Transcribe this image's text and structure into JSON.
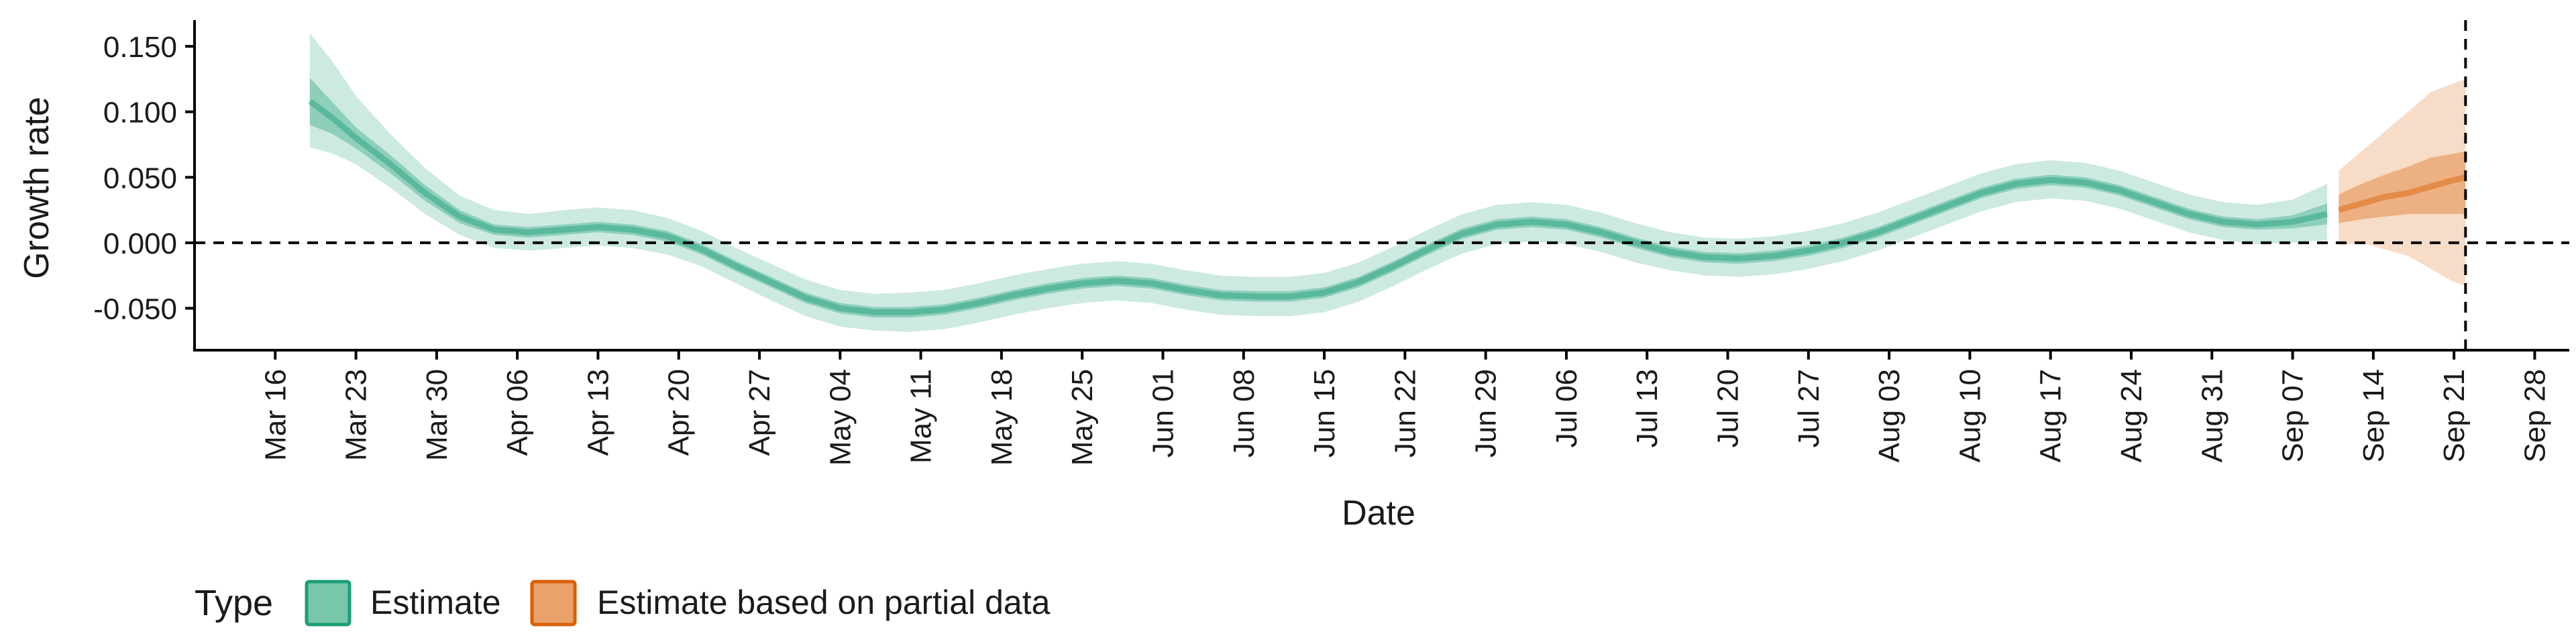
{
  "chart_data": {
    "type": "area",
    "xlabel": "Date",
    "ylabel": "Growth rate",
    "xlim": [
      "2020-03-09",
      "2020-10-01"
    ],
    "ylim": [
      -0.082,
      0.17
    ],
    "y_ticks": [
      0.15,
      0.1,
      0.05,
      0.0,
      -0.05
    ],
    "y_tick_labels": [
      "0.150",
      "0.100",
      "0.050",
      "0.000",
      "-0.050"
    ],
    "x_ticks": [
      "2020-03-16",
      "2020-03-23",
      "2020-03-30",
      "2020-04-06",
      "2020-04-13",
      "2020-04-20",
      "2020-04-27",
      "2020-05-04",
      "2020-05-11",
      "2020-05-18",
      "2020-05-25",
      "2020-06-01",
      "2020-06-08",
      "2020-06-15",
      "2020-06-22",
      "2020-06-29",
      "2020-07-06",
      "2020-07-13",
      "2020-07-20",
      "2020-07-27",
      "2020-08-03",
      "2020-08-10",
      "2020-08-17",
      "2020-08-24",
      "2020-08-31",
      "2020-09-07",
      "2020-09-14",
      "2020-09-21",
      "2020-09-28"
    ],
    "x_tick_labels": [
      "Mar 16",
      "Mar 23",
      "Mar 30",
      "Apr 06",
      "Apr 13",
      "Apr 20",
      "Apr 27",
      "May 04",
      "May 11",
      "May 18",
      "May 25",
      "Jun 01",
      "Jun 08",
      "Jun 15",
      "Jun 22",
      "Jun 29",
      "Jul 06",
      "Jul 13",
      "Jul 20",
      "Jul 27",
      "Aug 03",
      "Aug 10",
      "Aug 17",
      "Aug 24",
      "Aug 31",
      "Sep 07",
      "Sep 14",
      "Sep 21",
      "Sep 28"
    ],
    "hline_y": 0,
    "vline_x": "2020-09-22",
    "grid": false,
    "legend": {
      "title": "Type",
      "position": "bottom-left",
      "entries": [
        {
          "label": "Estimate",
          "fill": "#79c7a9",
          "stroke": "#1b9e77"
        },
        {
          "label": "Estimate based on partial data",
          "fill": "#eaa16a",
          "stroke": "#d95f02"
        }
      ]
    },
    "series": [
      {
        "name": "Estimate",
        "color": "#1b9e77",
        "x": [
          "2020-03-19",
          "2020-03-21",
          "2020-03-23",
          "2020-03-26",
          "2020-03-29",
          "2020-04-01",
          "2020-04-04",
          "2020-04-07",
          "2020-04-10",
          "2020-04-13",
          "2020-04-16",
          "2020-04-19",
          "2020-04-22",
          "2020-04-25",
          "2020-04-28",
          "2020-05-01",
          "2020-05-04",
          "2020-05-07",
          "2020-05-10",
          "2020-05-13",
          "2020-05-16",
          "2020-05-19",
          "2020-05-22",
          "2020-05-25",
          "2020-05-28",
          "2020-05-31",
          "2020-06-03",
          "2020-06-06",
          "2020-06-09",
          "2020-06-12",
          "2020-06-15",
          "2020-06-18",
          "2020-06-21",
          "2020-06-24",
          "2020-06-27",
          "2020-06-30",
          "2020-07-03",
          "2020-07-06",
          "2020-07-09",
          "2020-07-12",
          "2020-07-15",
          "2020-07-18",
          "2020-07-21",
          "2020-07-24",
          "2020-07-27",
          "2020-07-30",
          "2020-08-02",
          "2020-08-05",
          "2020-08-08",
          "2020-08-11",
          "2020-08-14",
          "2020-08-17",
          "2020-08-20",
          "2020-08-23",
          "2020-08-26",
          "2020-08-29",
          "2020-09-01",
          "2020-09-04",
          "2020-09-07",
          "2020-09-10"
        ],
        "median": [
          0.108,
          0.095,
          0.08,
          0.06,
          0.038,
          0.02,
          0.01,
          0.008,
          0.01,
          0.012,
          0.01,
          0.005,
          -0.005,
          -0.018,
          -0.03,
          -0.042,
          -0.05,
          -0.053,
          -0.053,
          -0.051,
          -0.046,
          -0.04,
          -0.035,
          -0.031,
          -0.029,
          -0.031,
          -0.036,
          -0.04,
          -0.041,
          -0.041,
          -0.038,
          -0.03,
          -0.018,
          -0.005,
          0.007,
          0.014,
          0.016,
          0.014,
          0.008,
          0.0,
          -0.007,
          -0.011,
          -0.012,
          -0.01,
          -0.006,
          0.0,
          0.008,
          0.018,
          0.028,
          0.038,
          0.045,
          0.048,
          0.046,
          0.04,
          0.031,
          0.022,
          0.016,
          0.014,
          0.016,
          0.022
        ],
        "inner_lo": [
          0.09,
          0.083,
          0.072,
          0.053,
          0.032,
          0.015,
          0.006,
          0.004,
          0.006,
          0.008,
          0.006,
          0.001,
          -0.009,
          -0.022,
          -0.034,
          -0.046,
          -0.054,
          -0.057,
          -0.057,
          -0.055,
          -0.05,
          -0.044,
          -0.039,
          -0.035,
          -0.033,
          -0.035,
          -0.04,
          -0.044,
          -0.045,
          -0.045,
          -0.042,
          -0.034,
          -0.022,
          -0.009,
          0.003,
          0.01,
          0.012,
          0.01,
          0.004,
          -0.004,
          -0.011,
          -0.015,
          -0.016,
          -0.014,
          -0.01,
          -0.004,
          0.004,
          0.014,
          0.024,
          0.034,
          0.041,
          0.044,
          0.042,
          0.036,
          0.027,
          0.018,
          0.012,
          0.01,
          0.011,
          0.014
        ],
        "inner_hi": [
          0.126,
          0.107,
          0.088,
          0.067,
          0.044,
          0.025,
          0.014,
          0.012,
          0.014,
          0.016,
          0.014,
          0.009,
          -0.001,
          -0.014,
          -0.026,
          -0.038,
          -0.046,
          -0.049,
          -0.049,
          -0.047,
          -0.042,
          -0.036,
          -0.031,
          -0.027,
          -0.025,
          -0.027,
          -0.032,
          -0.036,
          -0.037,
          -0.037,
          -0.034,
          -0.026,
          -0.014,
          -0.001,
          0.011,
          0.018,
          0.02,
          0.018,
          0.012,
          0.004,
          -0.003,
          -0.007,
          -0.008,
          -0.006,
          -0.002,
          0.004,
          0.012,
          0.022,
          0.032,
          0.042,
          0.049,
          0.052,
          0.05,
          0.044,
          0.035,
          0.026,
          0.02,
          0.018,
          0.021,
          0.03
        ],
        "outer_lo": [
          0.073,
          0.068,
          0.06,
          0.042,
          0.022,
          0.006,
          -0.004,
          -0.006,
          -0.004,
          -0.002,
          -0.004,
          -0.009,
          -0.018,
          -0.031,
          -0.044,
          -0.056,
          -0.064,
          -0.067,
          -0.068,
          -0.066,
          -0.061,
          -0.055,
          -0.05,
          -0.046,
          -0.044,
          -0.046,
          -0.051,
          -0.055,
          -0.056,
          -0.056,
          -0.053,
          -0.045,
          -0.033,
          -0.02,
          -0.008,
          -0.001,
          0.001,
          -0.001,
          -0.007,
          -0.015,
          -0.021,
          -0.025,
          -0.026,
          -0.024,
          -0.02,
          -0.014,
          -0.006,
          0.004,
          0.014,
          0.024,
          0.031,
          0.034,
          0.032,
          0.026,
          0.017,
          0.008,
          0.002,
          -0.001,
          0.0,
          0.002
        ],
        "outer_hi": [
          0.16,
          0.138,
          0.112,
          0.083,
          0.057,
          0.036,
          0.025,
          0.022,
          0.025,
          0.027,
          0.025,
          0.019,
          0.009,
          -0.004,
          -0.016,
          -0.028,
          -0.036,
          -0.039,
          -0.038,
          -0.036,
          -0.031,
          -0.025,
          -0.02,
          -0.016,
          -0.014,
          -0.016,
          -0.021,
          -0.025,
          -0.026,
          -0.026,
          -0.023,
          -0.015,
          -0.003,
          0.01,
          0.022,
          0.029,
          0.031,
          0.029,
          0.023,
          0.015,
          0.008,
          0.004,
          0.003,
          0.005,
          0.009,
          0.015,
          0.023,
          0.033,
          0.043,
          0.053,
          0.06,
          0.063,
          0.061,
          0.055,
          0.046,
          0.037,
          0.031,
          0.029,
          0.033,
          0.045
        ]
      },
      {
        "name": "Estimate based on partial data",
        "color": "#d95f02",
        "x": [
          "2020-09-11",
          "2020-09-13",
          "2020-09-15",
          "2020-09-17",
          "2020-09-19",
          "2020-09-21",
          "2020-09-22"
        ],
        "median": [
          0.025,
          0.03,
          0.035,
          0.038,
          0.043,
          0.048,
          0.05
        ],
        "inner_lo": [
          0.015,
          0.018,
          0.02,
          0.022,
          0.022,
          0.022,
          0.022
        ],
        "inner_hi": [
          0.037,
          0.045,
          0.052,
          0.058,
          0.065,
          0.068,
          0.07
        ],
        "outer_lo": [
          -0.002,
          0.0,
          -0.005,
          -0.01,
          -0.02,
          -0.03,
          -0.033
        ],
        "outer_hi": [
          0.055,
          0.07,
          0.085,
          0.1,
          0.115,
          0.122,
          0.125
        ]
      }
    ]
  }
}
